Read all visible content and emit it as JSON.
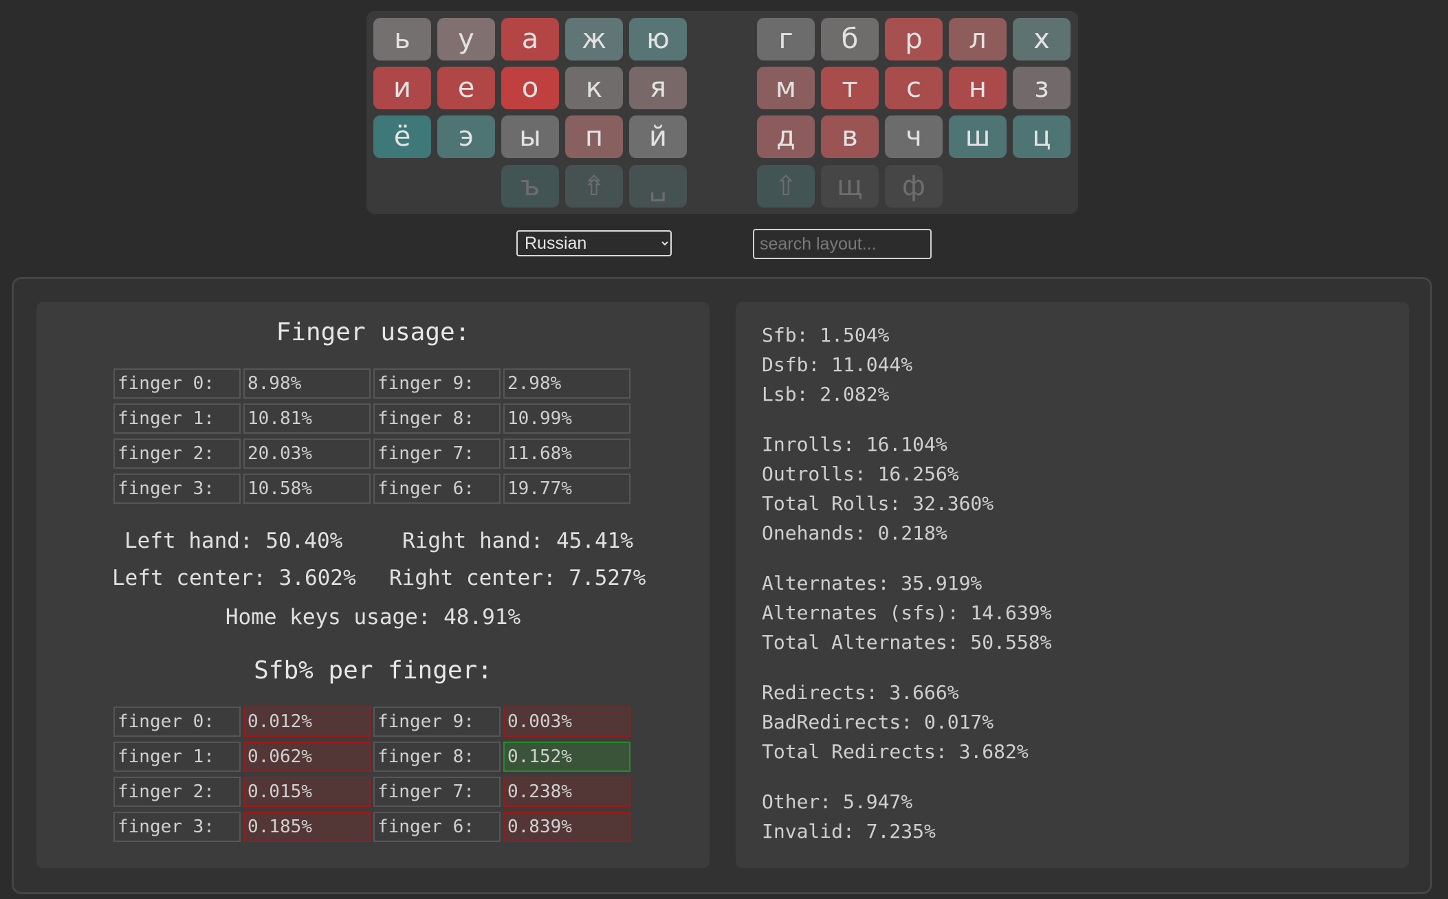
{
  "keyboard": {
    "rows": [
      [
        {
          "char": "ь",
          "color": "#757070"
        },
        {
          "char": "у",
          "color": "#817070"
        },
        {
          "char": "а",
          "color": "#b44545"
        },
        {
          "char": "ж",
          "color": "#607575"
        },
        {
          "char": "ю",
          "color": "#587575"
        },
        {
          "char": "г",
          "color": "#6c6c6c"
        },
        {
          "char": "б",
          "color": "#6f6c6c"
        },
        {
          "char": "р",
          "color": "#a65050"
        },
        {
          "char": "л",
          "color": "#8f5c5c"
        },
        {
          "char": "х",
          "color": "#5f7272"
        }
      ],
      [
        {
          "char": "и",
          "color": "#ae4848"
        },
        {
          "char": "е",
          "color": "#b04646"
        },
        {
          "char": "о",
          "color": "#c04040"
        },
        {
          "char": "к",
          "color": "#716c6c"
        },
        {
          "char": "я",
          "color": "#786868"
        },
        {
          "char": "м",
          "color": "#8a5e5e"
        },
        {
          "char": "т",
          "color": "#a84c4c"
        },
        {
          "char": "с",
          "color": "#a84c4c"
        },
        {
          "char": "н",
          "color": "#aa4a4a"
        },
        {
          "char": "з",
          "color": "#726a6a"
        }
      ],
      [
        {
          "char": "ё",
          "color": "#3f7878"
        },
        {
          "char": "э",
          "color": "#4f7474"
        },
        {
          "char": "ы",
          "color": "#6c6c6c"
        },
        {
          "char": "п",
          "color": "#886060"
        },
        {
          "char": "й",
          "color": "#6e6e6e"
        },
        {
          "char": "д",
          "color": "#8c5c5c"
        },
        {
          "char": "в",
          "color": "#9a5454"
        },
        {
          "char": "ч",
          "color": "#6c6c6c"
        },
        {
          "char": "ш",
          "color": "#4f7474"
        },
        {
          "char": "ц",
          "color": "#4f7474"
        }
      ]
    ],
    "thumbs_left": [
      {
        "char": "ъ",
        "color": "#435454"
      },
      {
        "char": "⇮",
        "color": "#465252"
      },
      {
        "char": "␣",
        "color": "#465252"
      }
    ],
    "thumbs_right": [
      {
        "char": "⇧",
        "color": "#435454"
      },
      {
        "char": "щ",
        "color": "#464646"
      },
      {
        "char": "ф",
        "color": "#464646"
      }
    ]
  },
  "controls": {
    "language_selected": "Russian",
    "search_placeholder": "search layout..."
  },
  "finger_usage": {
    "title": "Finger usage:",
    "rows": [
      {
        "left_label": "finger 0:",
        "left_value": "8.98%",
        "right_label": "finger 9:",
        "right_value": "2.98%"
      },
      {
        "left_label": "finger 1:",
        "left_value": "10.81%",
        "right_label": "finger 8:",
        "right_value": "10.99%"
      },
      {
        "left_label": "finger 2:",
        "left_value": "20.03%",
        "right_label": "finger 7:",
        "right_value": "11.68%"
      },
      {
        "left_label": "finger 3:",
        "left_value": "10.58%",
        "right_label": "finger 6:",
        "right_value": "19.77%"
      }
    ],
    "left_hand": "Left hand: 50.40%",
    "right_hand": "Right hand: 45.41%",
    "left_center": "Left center: 3.602%",
    "right_center": "Right center: 7.527%",
    "home_keys": "Home keys usage: 48.91%"
  },
  "sfb_per_finger": {
    "title": "Sfb% per finger:",
    "rows": [
      {
        "left_label": "finger 0:",
        "left_value": "0.012%",
        "left_status": "bad",
        "right_label": "finger 9:",
        "right_value": "0.003%",
        "right_status": "bad"
      },
      {
        "left_label": "finger 1:",
        "left_value": "0.062%",
        "left_status": "bad",
        "right_label": "finger 8:",
        "right_value": "0.152%",
        "right_status": "good"
      },
      {
        "left_label": "finger 2:",
        "left_value": "0.015%",
        "left_status": "bad",
        "right_label": "finger 7:",
        "right_value": "0.238%",
        "right_status": "bad"
      },
      {
        "left_label": "finger 3:",
        "left_value": "0.185%",
        "left_status": "bad",
        "right_label": "finger 6:",
        "right_value": "0.839%",
        "right_status": "bad"
      }
    ]
  },
  "stats": {
    "groups": [
      [
        "Sfb:  1.504%",
        "Dsfb: 11.044%",
        "Lsb:  2.082%"
      ],
      [
        "Inrolls: 16.104%",
        "Outrolls: 16.256%",
        "Total Rolls: 32.360%",
        "Onehands: 0.218%"
      ],
      [
        "Alternates: 35.919%",
        "Alternates (sfs): 14.639%",
        "Total Alternates: 50.558%"
      ],
      [
        "Redirects: 3.666%",
        "BadRedirects: 0.017%",
        "Total Redirects: 3.682%"
      ],
      [
        "Other: 5.947%",
        "Invalid: 7.235%"
      ]
    ]
  }
}
